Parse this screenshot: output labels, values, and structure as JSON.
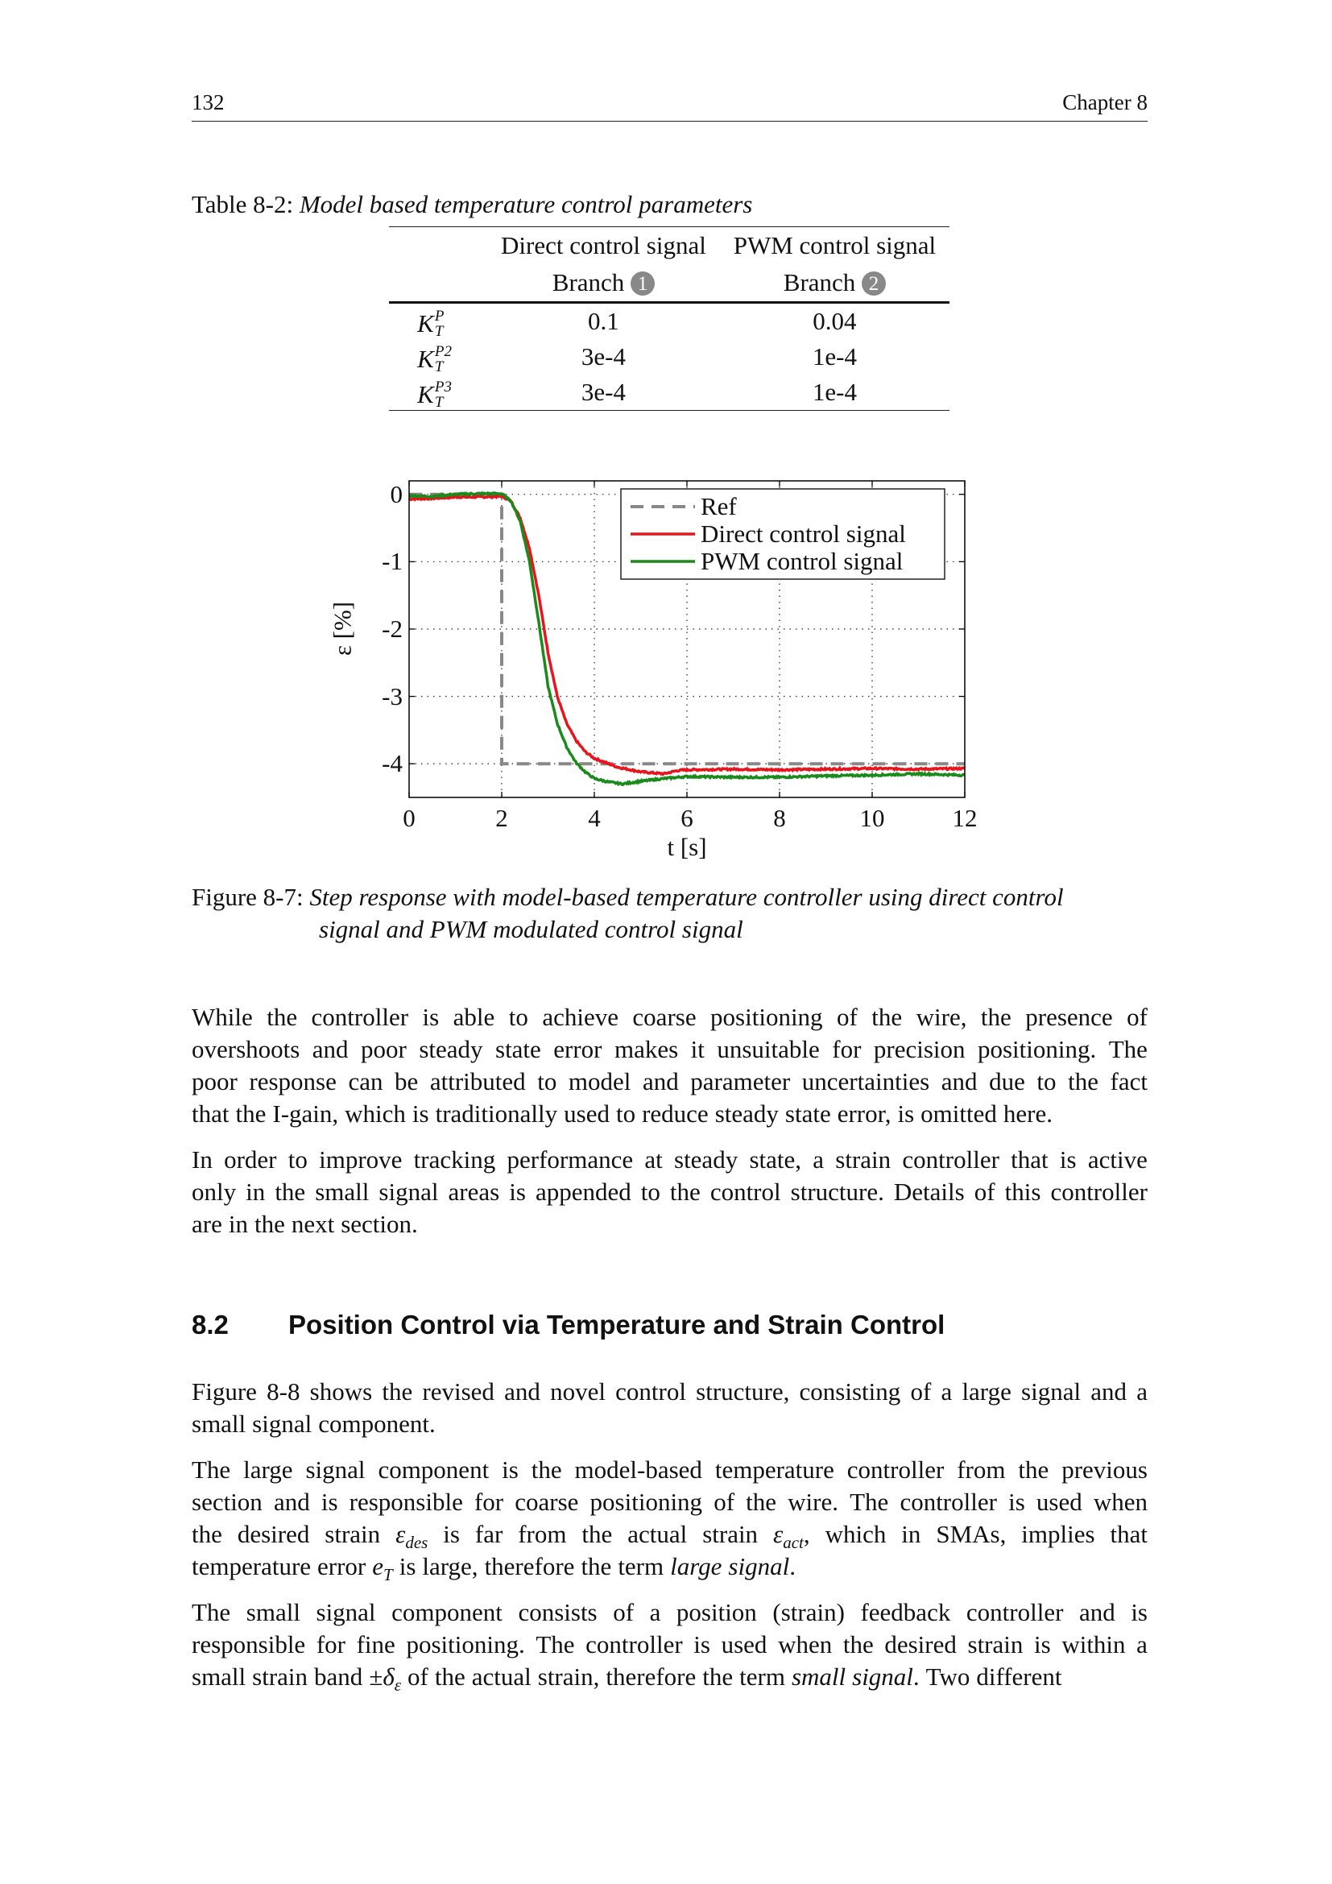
{
  "header": {
    "page_number": "132",
    "chapter": "Chapter 8"
  },
  "table": {
    "caption_label": "Table 8-2:",
    "caption_text": "Model based temperature control parameters",
    "columns": [
      {
        "title": "Direct control signal",
        "branch": "Branch",
        "branch_num": "1"
      },
      {
        "title": "PWM control signal",
        "branch": "Branch",
        "branch_num": "2"
      }
    ],
    "rows": [
      {
        "param": "K",
        "sup": "P",
        "sub": "T",
        "values": [
          "0.1",
          "0.04"
        ]
      },
      {
        "param": "K",
        "sup": "P2",
        "sub": "T",
        "values": [
          "3e-4",
          "1e-4"
        ]
      },
      {
        "param": "K",
        "sup": "P3",
        "sub": "T",
        "values": [
          "3e-4",
          "1e-4"
        ]
      }
    ]
  },
  "chart_data": {
    "type": "line",
    "xlabel": "t [s]",
    "ylabel": "ε [%]",
    "xlim": [
      0,
      12
    ],
    "ylim": [
      -4.5,
      0.2
    ],
    "xticks": [
      0,
      2,
      4,
      6,
      8,
      10,
      12
    ],
    "yticks": [
      0,
      -1,
      -2,
      -3,
      -4
    ],
    "grid": true,
    "legend_position": "top-right",
    "series": [
      {
        "name": "Ref",
        "color": "#888888",
        "style": "dashed",
        "x": [
          0,
          2,
          2,
          12
        ],
        "y": [
          0,
          0,
          -4,
          -4
        ]
      },
      {
        "name": "Direct control signal",
        "color": "#e8141c",
        "style": "solid",
        "x": [
          0,
          0.5,
          1,
          1.5,
          2,
          2.2,
          2.4,
          2.6,
          2.8,
          3.0,
          3.2,
          3.4,
          3.6,
          3.8,
          4.0,
          4.5,
          5.0,
          5.5,
          5.8,
          6,
          7,
          8,
          9,
          10,
          11,
          12
        ],
        "y": [
          -0.07,
          -0.06,
          -0.04,
          -0.04,
          -0.03,
          -0.1,
          -0.35,
          -0.8,
          -1.5,
          -2.35,
          -3.0,
          -3.4,
          -3.65,
          -3.82,
          -3.92,
          -4.05,
          -4.12,
          -4.15,
          -4.1,
          -4.09,
          -4.08,
          -4.09,
          -4.08,
          -4.07,
          -4.08,
          -4.07
        ]
      },
      {
        "name": "PWM control signal",
        "color": "#1a8a1a",
        "style": "solid",
        "x": [
          0,
          0.5,
          1,
          1.5,
          2,
          2.2,
          2.4,
          2.6,
          2.8,
          3.0,
          3.2,
          3.4,
          3.6,
          3.8,
          4.0,
          4.3,
          4.6,
          5.0,
          5.5,
          6,
          7,
          8,
          9,
          10,
          11,
          12
        ],
        "y": [
          -0.02,
          -0.03,
          0.0,
          0.01,
          0.01,
          -0.1,
          -0.4,
          -1.0,
          -1.9,
          -2.85,
          -3.4,
          -3.75,
          -3.98,
          -4.12,
          -4.22,
          -4.27,
          -4.3,
          -4.26,
          -4.22,
          -4.19,
          -4.2,
          -4.2,
          -4.18,
          -4.17,
          -4.15,
          -4.17
        ]
      }
    ]
  },
  "figure": {
    "caption_label": "Figure 8-7:",
    "caption_line1": "Step response with model-based temperature controller using direct control",
    "caption_line2": "signal and PWM modulated control signal"
  },
  "paragraphs_before": [
    [
      [
        {
          "t": "While the controller is able to achieve coarse positioning of the wire, the presence of"
        }
      ],
      [
        {
          "t": "overshoots and poor steady state error makes it unsuitable for precision positioning. The"
        }
      ],
      [
        {
          "t": "poor response can be attributed to model and parameter uncertainties and due to the fact"
        }
      ],
      [
        {
          "t": "that the I-gain, which is traditionally used to reduce steady state error, is omitted here."
        }
      ]
    ],
    [
      [
        {
          "t": "In order to improve tracking performance at steady state, a strain controller that is active"
        }
      ],
      [
        {
          "t": "only in the small signal areas is appended to the control structure. Details of this controller"
        }
      ],
      [
        {
          "t": "are in the next section."
        }
      ]
    ]
  ],
  "section": {
    "number": "8.2",
    "title": "Position Control via Temperature and Strain Control"
  },
  "paragraphs_after": [
    [
      [
        {
          "t": "Figure 8-8 shows the revised and novel control structure, consisting of a large signal and a"
        }
      ],
      [
        {
          "t": "small signal component."
        }
      ]
    ],
    [
      [
        {
          "t": "The large signal component is the model-based temperature controller from the previous"
        }
      ],
      [
        {
          "t": "section and is responsible for coarse positioning of the wire. The controller is used when"
        }
      ],
      [
        {
          "t": "the desired strain "
        },
        {
          "t": "ε",
          "i": true,
          "sub": "des"
        },
        {
          "t": " is far from the actual strain "
        },
        {
          "t": "ε",
          "i": true,
          "sub": "act"
        },
        {
          "t": ", which in SMAs, implies that"
        }
      ],
      [
        {
          "t": "temperature error "
        },
        {
          "t": "e",
          "i": true,
          "sub": "T"
        },
        {
          "t": " is large, therefore the term "
        },
        {
          "t": "large signal",
          "i": true
        },
        {
          "t": "."
        }
      ]
    ],
    [
      [
        {
          "t": "The small signal component consists of a position (strain) feedback controller and is"
        }
      ],
      [
        {
          "t": "responsible for fine positioning. The controller is used when the desired strain is within a"
        }
      ],
      [
        {
          "t": "small strain band ±"
        },
        {
          "t": "δ",
          "i": true,
          "sub": "ε"
        },
        {
          "t": " of the actual strain, therefore the term "
        },
        {
          "t": "small signal",
          "i": true
        },
        {
          "t": ". Two different"
        }
      ]
    ]
  ]
}
